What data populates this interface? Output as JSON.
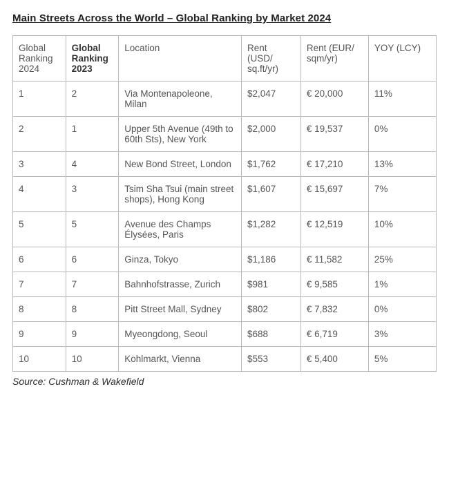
{
  "title": "Main Streets Across the World – Global Ranking by Market 2024",
  "source": "Source: Cushman & Wakefield",
  "table": {
    "type": "table",
    "text_color": "#555555",
    "border_color": "#b8b8b8",
    "background_color": "#ffffff",
    "title_fontsize": 15,
    "cell_fontsize": 13.5,
    "columns": [
      {
        "key": "rank2024",
        "label": "Global Ranking 2024",
        "bold": false
      },
      {
        "key": "rank2023",
        "label": "Global Ranking 2023",
        "bold": true
      },
      {
        "key": "location",
        "label": "Location",
        "bold": false
      },
      {
        "key": "rent_usd",
        "label": "Rent (USD/ sq.ft/yr)",
        "bold": false
      },
      {
        "key": "rent_eur",
        "label": "Rent (EUR/ sqm/yr)",
        "bold": false
      },
      {
        "key": "yoy",
        "label": "YOY (LCY)",
        "bold": false
      }
    ],
    "rows": [
      {
        "rank2024": "1",
        "rank2023": "2",
        "location": "Via Montenapoleone, Milan",
        "rent_usd": "$2,047",
        "rent_eur": "€ 20,000",
        "yoy": "11%"
      },
      {
        "rank2024": "2",
        "rank2023": "1",
        "location": "Upper 5th Avenue (49th to 60th Sts), New York",
        "rent_usd": "$2,000",
        "rent_eur": "€ 19,537",
        "yoy": "0%"
      },
      {
        "rank2024": "3",
        "rank2023": "4",
        "location": "New Bond Street, London",
        "rent_usd": "$1,762",
        "rent_eur": "€ 17,210",
        "yoy": "13%"
      },
      {
        "rank2024": "4",
        "rank2023": "3",
        "location": "Tsim Sha Tsui (main street shops), Hong Kong",
        "rent_usd": "$1,607",
        "rent_eur": "€ 15,697",
        "yoy": "7%"
      },
      {
        "rank2024": "5",
        "rank2023": "5",
        "location": "Avenue des Champs Élysées, Paris",
        "rent_usd": "$1,282",
        "rent_eur": "€ 12,519",
        "yoy": "10%"
      },
      {
        "rank2024": "6",
        "rank2023": "6",
        "location": "Ginza, Tokyo",
        "rent_usd": "$1,186",
        "rent_eur": "€ 11,582",
        "yoy": "25%"
      },
      {
        "rank2024": "7",
        "rank2023": "7",
        "location": "Bahnhofstrasse, Zurich",
        "rent_usd": "$981",
        "rent_eur": "€ 9,585",
        "yoy": "1%"
      },
      {
        "rank2024": "8",
        "rank2023": "8",
        "location": "Pitt Street Mall, Sydney",
        "rent_usd": "$802",
        "rent_eur": "€ 7,832",
        "yoy": "0%"
      },
      {
        "rank2024": "9",
        "rank2023": "9",
        "location": "Myeongdong, Seoul",
        "rent_usd": "$688",
        "rent_eur": "€ 6,719",
        "yoy": "3%"
      },
      {
        "rank2024": "10",
        "rank2023": "10",
        "location": "Kohlmarkt, Vienna",
        "rent_usd": "$553",
        "rent_eur": "€ 5,400",
        "yoy": "5%"
      }
    ]
  }
}
